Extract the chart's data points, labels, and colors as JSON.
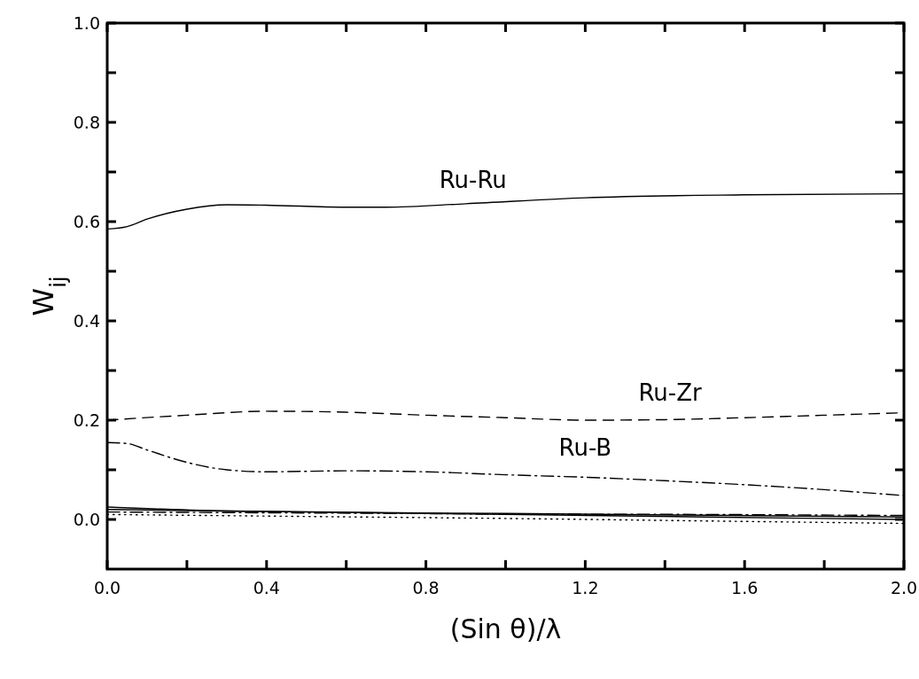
{
  "chart_data": {
    "type": "line",
    "xlabel": "(Sin θ)/λ",
    "ylabel": "W$_{ij}$",
    "xlim": [
      0,
      2.0
    ],
    "ylim": [
      -0.1,
      1.0
    ],
    "xticks": [
      {
        "value": 0,
        "label": "0.0"
      },
      {
        "value": 0.2,
        "label": null
      },
      {
        "value": 0.4,
        "label": "0.4"
      },
      {
        "value": 0.6,
        "label": null
      },
      {
        "value": 0.8,
        "label": "0.8"
      },
      {
        "value": 1.0,
        "label": null
      },
      {
        "value": 1.2,
        "label": "1.2"
      },
      {
        "value": 1.4,
        "label": null
      },
      {
        "value": 1.6,
        "label": "1.6"
      },
      {
        "value": 1.8,
        "label": null
      },
      {
        "value": 2.0,
        "label": "2.0"
      }
    ],
    "yticks": [
      {
        "value": 0,
        "label": "0.0"
      },
      {
        "value": 0.1,
        "label": null
      },
      {
        "value": 0.2,
        "label": "0.2"
      },
      {
        "value": 0.3,
        "label": null
      },
      {
        "value": 0.4,
        "label": "0.4"
      },
      {
        "value": 0.5,
        "label": null
      },
      {
        "value": 0.6,
        "label": "0.6"
      },
      {
        "value": 0.7,
        "label": null
      },
      {
        "value": 0.8,
        "label": "0.8"
      },
      {
        "value": 0.9,
        "label": null
      },
      {
        "value": 1.0,
        "label": "1.0"
      }
    ],
    "grid": false,
    "marker": "none",
    "series": [
      {
        "name": "Ru-Ru",
        "color": "#000000",
        "line_style": "solid",
        "x": [
          0,
          0.05,
          0.1,
          0.2,
          0.3,
          0.4,
          0.6,
          0.7,
          0.9,
          1.2,
          1.6,
          2.0
        ],
        "values": [
          0.585,
          0.59,
          0.605,
          0.625,
          0.634,
          0.633,
          0.629,
          0.629,
          0.636,
          0.648,
          0.654,
          0.656
        ]
      },
      {
        "name": "Ru-Zr",
        "color": "#000000",
        "line_style": "dashed",
        "x": [
          0,
          0.2,
          0.4,
          0.6,
          0.8,
          1.0,
          1.2,
          1.4,
          1.6,
          1.8,
          2.0
        ],
        "values": [
          0.2,
          0.21,
          0.218,
          0.216,
          0.21,
          0.205,
          0.2,
          0.201,
          0.205,
          0.21,
          0.215
        ]
      },
      {
        "name": "Ru-B",
        "color": "#000000",
        "line_style": "dashdot",
        "x": [
          0,
          0.05,
          0.1,
          0.2,
          0.3,
          0.4,
          0.6,
          0.8,
          1.0,
          1.2,
          1.4,
          1.6,
          1.8,
          2.0
        ],
        "values": [
          0.155,
          0.153,
          0.14,
          0.115,
          0.1,
          0.096,
          0.098,
          0.096,
          0.09,
          0.085,
          0.078,
          0.07,
          0.06,
          0.048
        ]
      },
      {
        "color": "#000000",
        "line_style": "solid",
        "x": [
          0,
          0.1,
          0.3,
          1.0,
          2.0
        ],
        "values": [
          0.025,
          0.022,
          0.017,
          0.012,
          0.005
        ]
      },
      {
        "color": "#000000",
        "line_style": "solid",
        "x": [
          0,
          0.5,
          1.0,
          1.5,
          2.0
        ],
        "values": [
          0.02,
          0.015,
          0.01,
          0.005,
          0.0
        ]
      },
      {
        "color": "#000000",
        "line_style": "dashdot",
        "x": [
          0,
          0.5,
          1.0,
          1.5,
          2.0
        ],
        "values": [
          0.015,
          0.013,
          0.011,
          0.01,
          0.008
        ]
      },
      {
        "color": "#000000",
        "line_style": "dotted",
        "x": [
          0,
          0.5,
          1.0,
          1.5,
          2.0
        ],
        "values": [
          0.01,
          0.006,
          0.002,
          -0.003,
          -0.008
        ]
      }
    ]
  }
}
